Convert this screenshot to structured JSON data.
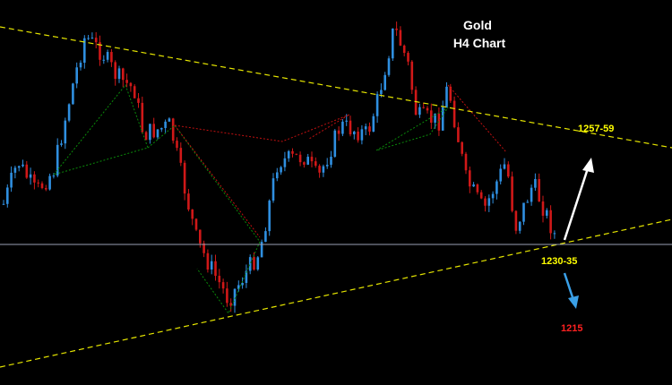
{
  "header": {
    "title": "Gold",
    "subtitle": "H4 Chart"
  },
  "annotations": {
    "resistance": "1257-59",
    "support": "1230-35",
    "target": "1215"
  }
}
